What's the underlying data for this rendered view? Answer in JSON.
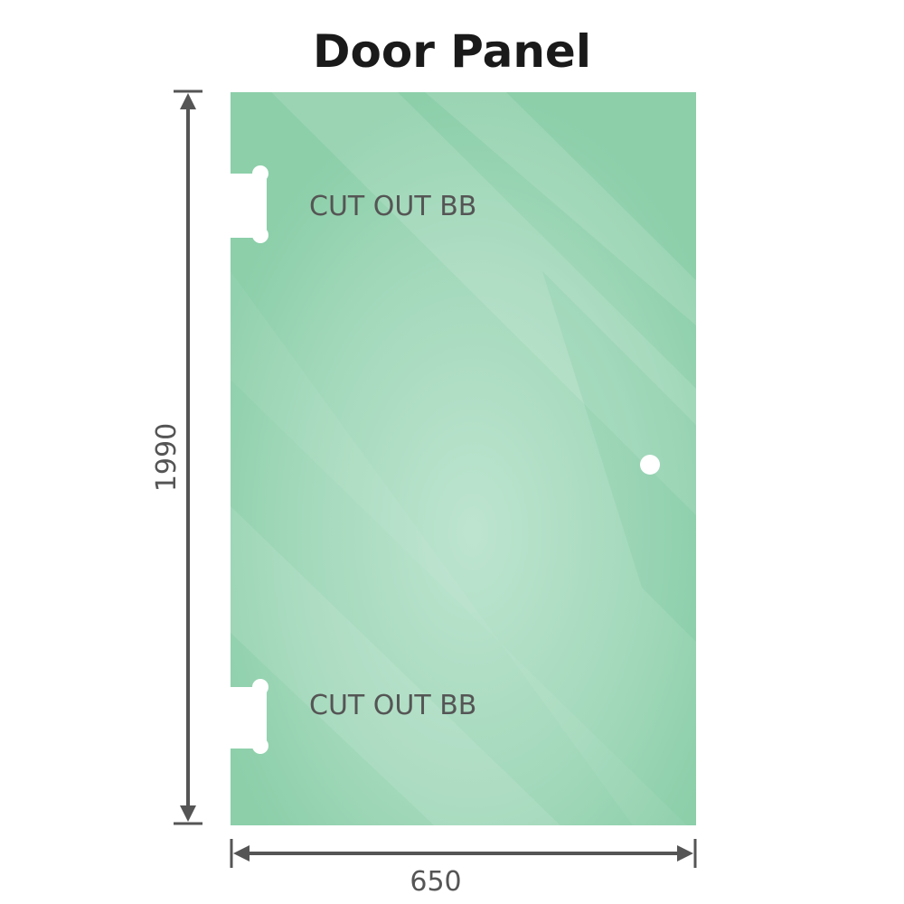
{
  "title": "Door Panel",
  "dimensions": {
    "height": "1990",
    "width": "650"
  },
  "cutouts": [
    {
      "label": "CUT OUT BB"
    },
    {
      "label": "CUT OUT BB"
    }
  ],
  "colors": {
    "glass": "#8dd0ab",
    "glass_light": "#b8e2cb",
    "arrow": "#555555",
    "text": "#555555"
  }
}
